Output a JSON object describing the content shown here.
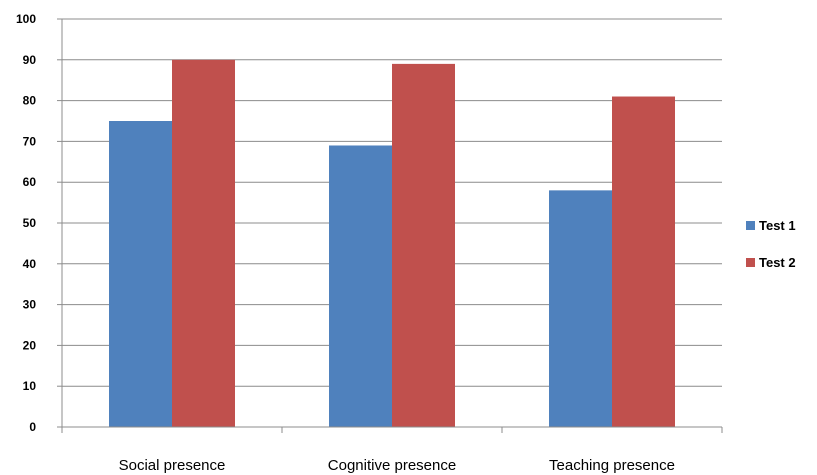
{
  "chart_data": {
    "type": "bar",
    "categories": [
      "Social presence",
      "Cognitive presence",
      "Teaching presence"
    ],
    "series": [
      {
        "name": "Test 1",
        "values": [
          75,
          69,
          58
        ],
        "color": "#4F81BD"
      },
      {
        "name": "Test 2",
        "values": [
          90,
          89,
          81
        ],
        "color": "#C0504D"
      }
    ],
    "ylim": [
      0,
      100
    ],
    "yticks": [
      0,
      10,
      20,
      30,
      40,
      50,
      60,
      70,
      80,
      90,
      100
    ],
    "grid": true,
    "legend_position": "right"
  }
}
